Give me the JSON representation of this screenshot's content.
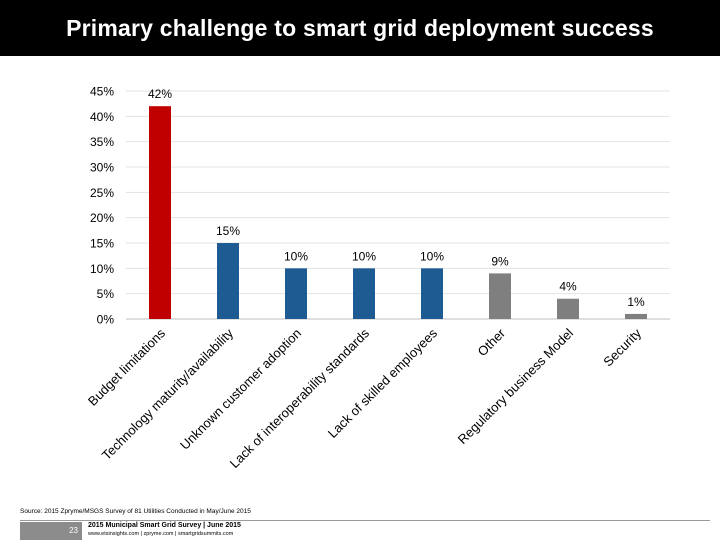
{
  "header": {
    "title": "Primary challenge to smart grid deployment success"
  },
  "chart_data": {
    "type": "bar",
    "title": "Primary challenge to smart grid deployment success",
    "categories": [
      "Budget limitations",
      "Technology maturity/availability",
      "Unknown customer adoption",
      "Lack of interoperability standards",
      "Lack of skilled employees",
      "Other",
      "Regulatory business Model",
      "Security"
    ],
    "values": [
      42,
      15,
      10,
      10,
      10,
      9,
      4,
      1
    ],
    "data_labels": [
      "42%",
      "15%",
      "10%",
      "10%",
      "10%",
      "9%",
      "4%",
      "1%"
    ],
    "bar_colors": [
      "#c00000",
      "#1f5b93",
      "#1f5b93",
      "#1f5b93",
      "#1f5b93",
      "#7f7f7f",
      "#7f7f7f",
      "#7f7f7f"
    ],
    "y_ticks": [
      "0%",
      "5%",
      "10%",
      "15%",
      "20%",
      "25%",
      "30%",
      "35%",
      "40%",
      "45%"
    ],
    "ylim": [
      0,
      45
    ],
    "xlabel": "",
    "ylabel": "",
    "grid": true
  },
  "footer": {
    "source": "Source: 2015 Zpryme/MSGS Survey of 81 Utilities Conducted in May/June 2015",
    "page_number": "23",
    "survey_title": "2015 Municipal Smart Grid Survey | June 2015",
    "links": "www.etsinsights.com | zpryme.com | smartgridsummits.com"
  }
}
